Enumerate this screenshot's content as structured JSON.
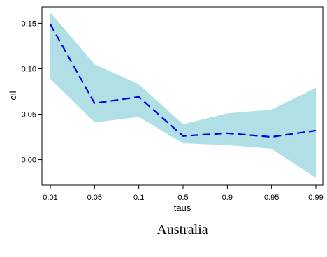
{
  "chart_data": {
    "type": "line",
    "x": [
      "0.01",
      "0.05",
      "0.1",
      "0.5",
      "0.9",
      "0.95",
      "0.99"
    ],
    "series": [
      {
        "values": [
          0.149,
          0.062,
          0.069,
          0.026,
          0.029,
          0.025,
          0.032
        ],
        "lower": [
          0.089,
          0.041,
          0.047,
          0.018,
          0.016,
          0.012,
          -0.02
        ],
        "upper": [
          0.162,
          0.105,
          0.083,
          0.039,
          0.051,
          0.055,
          0.079
        ],
        "line_color": "#0000dd",
        "band_color": "#b0dfe5",
        "line_style": "dashed"
      }
    ],
    "xlabel": "taus",
    "ylabel": "oil",
    "yticks": [
      "0.00",
      "0.05",
      "0.10",
      "0.15"
    ],
    "ylim": [
      -0.028,
      0.168
    ],
    "grid": false,
    "legend": "none"
  },
  "caption": "Australia"
}
